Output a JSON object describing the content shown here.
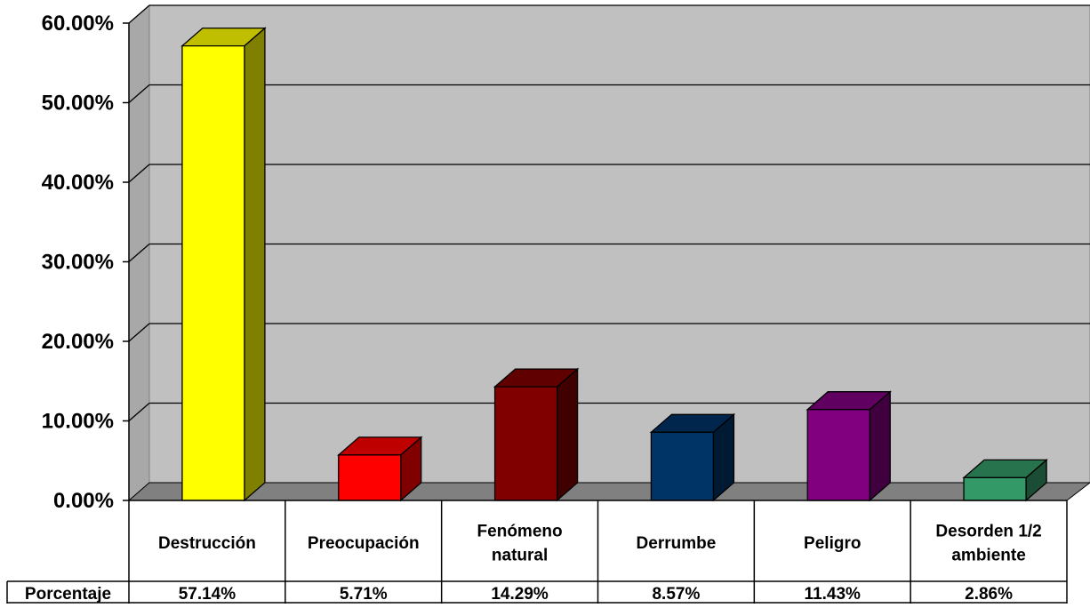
{
  "chart_data": {
    "type": "bar",
    "categories": [
      "Destrucción",
      "Preocupación",
      "Fenómeno natural",
      "Derrumbe",
      "Peligro",
      "Desorden 1/2 ambiente"
    ],
    "category_lines": [
      [
        "Destrucción"
      ],
      [
        "Preocupación"
      ],
      [
        "Fenómeno",
        "natural"
      ],
      [
        "Derrumbe"
      ],
      [
        "Peligro"
      ],
      [
        "Desorden 1/2",
        "ambiente"
      ]
    ],
    "series": [
      {
        "name": "Porcentaje",
        "values": [
          57.14,
          5.71,
          14.29,
          8.57,
          11.43,
          2.86
        ]
      }
    ],
    "value_labels": [
      "57.14%",
      "5.71%",
      "14.29%",
      "8.57%",
      "11.43%",
      "2.86%"
    ],
    "bar_colors": [
      "#FFFF00",
      "#FF0000",
      "#800000",
      "#003366",
      "#800080",
      "#339966"
    ],
    "yticks": [
      0,
      10,
      20,
      30,
      40,
      50,
      60
    ],
    "ytick_labels": [
      "0.00%",
      "10.00%",
      "20.00%",
      "30.00%",
      "40.00%",
      "50.00%",
      "60.00%"
    ],
    "ylim": [
      0,
      60
    ],
    "grid": true,
    "style": "3d-bar-with-data-table",
    "wall_color": "#C0C0C0",
    "floor_color": "#808080",
    "title": "",
    "xlabel": "",
    "ylabel": ""
  }
}
